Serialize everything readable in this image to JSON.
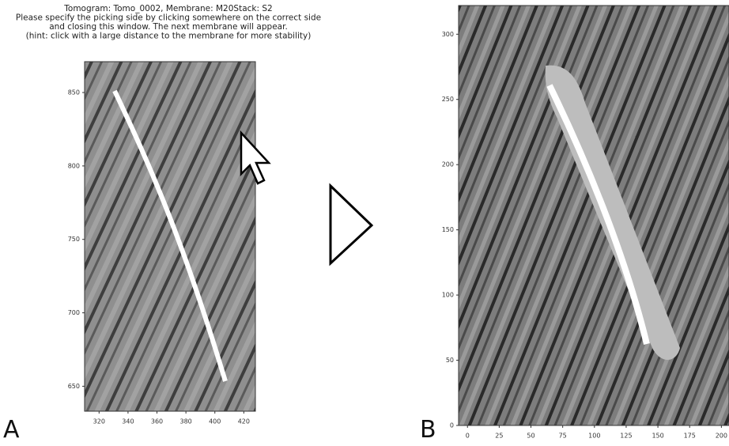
{
  "panel_a": {
    "label": "A",
    "title_lines": [
      "Tomogram: Tomo_0002, Membrane: M20Stack: S2",
      "Please specify the picking side by clicking somewhere on the correct side",
      "and closing this window. The next membrane will appear.",
      "(hint: click with a large distance to the membrane for more stability)"
    ],
    "xlim": [
      310,
      428
    ],
    "xticks": [
      320,
      340,
      360,
      380,
      400,
      420
    ],
    "ylim": [
      633,
      871
    ],
    "yticks": [
      850,
      800,
      750,
      700,
      650
    ]
  },
  "panel_b": {
    "label": "B",
    "xlim": [
      -7,
      206
    ],
    "xticks": [
      0,
      25,
      50,
      75,
      100,
      125,
      150,
      175,
      200
    ],
    "ylim": [
      0,
      322
    ],
    "yticks": [
      300,
      250,
      200,
      150,
      100,
      50,
      0
    ]
  }
}
